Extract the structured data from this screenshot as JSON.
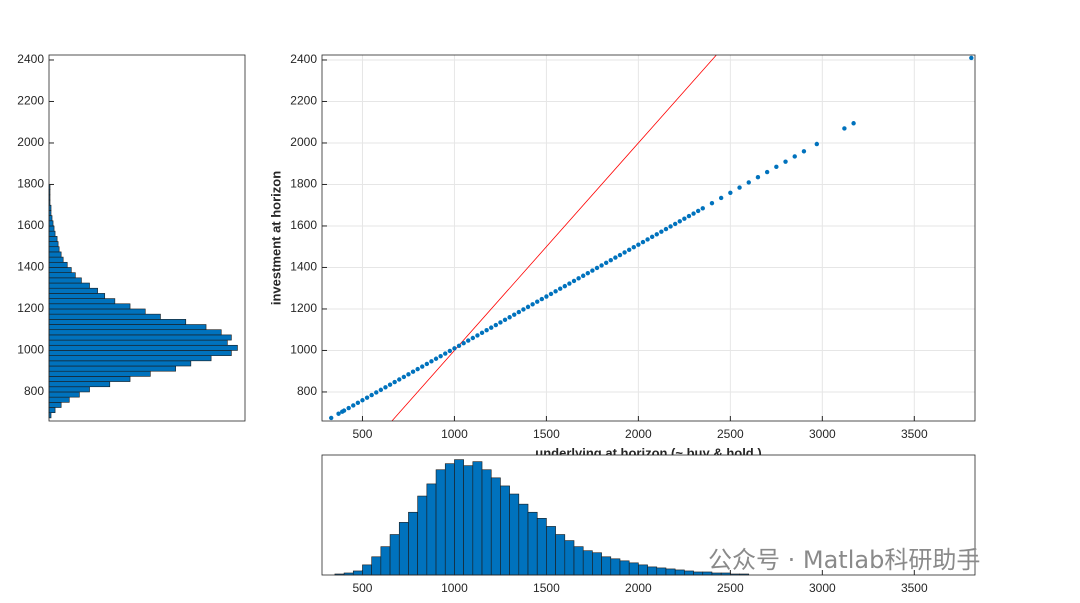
{
  "chart_data": [
    {
      "type": "scatter",
      "x_label": "underlying at horizon (~ buy & hold )",
      "y_label": "investment at horizon",
      "color": "#0072bd",
      "x": [
        330,
        370,
        390,
        400,
        425,
        450,
        475,
        500,
        525,
        550,
        575,
        600,
        625,
        650,
        675,
        700,
        725,
        750,
        775,
        800,
        825,
        850,
        875,
        900,
        925,
        950,
        975,
        1000,
        1025,
        1050,
        1075,
        1100,
        1125,
        1150,
        1175,
        1200,
        1225,
        1250,
        1275,
        1300,
        1325,
        1350,
        1375,
        1400,
        1425,
        1450,
        1475,
        1500,
        1525,
        1550,
        1575,
        1600,
        1625,
        1650,
        1675,
        1700,
        1725,
        1750,
        1775,
        1800,
        1825,
        1850,
        1875,
        1900,
        1925,
        1950,
        1975,
        2000,
        2025,
        2050,
        2075,
        2100,
        2125,
        2150,
        2175,
        2200,
        2225,
        2250,
        2275,
        2300,
        2325,
        2350,
        2400,
        2450,
        2500,
        2550,
        2600,
        2650,
        2700,
        2750,
        2800,
        2850,
        2900,
        2970,
        3120,
        3170,
        3810
      ],
      "values": [
        675,
        695,
        705,
        710,
        722.5,
        735,
        747.5,
        760,
        772.5,
        785,
        797.5,
        810,
        822.5,
        835,
        847.5,
        860,
        872.5,
        885,
        897.5,
        910,
        922.5,
        935,
        947.5,
        960,
        972.5,
        985,
        997.5,
        1010,
        1022.5,
        1035,
        1047.5,
        1060,
        1072.5,
        1085,
        1097.5,
        1110,
        1122.5,
        1135,
        1147.5,
        1160,
        1172.5,
        1185,
        1197.5,
        1210,
        1222.5,
        1235,
        1247.5,
        1260,
        1272.5,
        1285,
        1297.5,
        1310,
        1322.5,
        1335,
        1347.5,
        1360,
        1372.5,
        1385,
        1397.5,
        1410,
        1422.5,
        1435,
        1447.5,
        1460,
        1472.5,
        1485,
        1497.5,
        1510,
        1522.5,
        1535,
        1547.5,
        1560,
        1572.5,
        1585,
        1597.5,
        1610,
        1622.5,
        1635,
        1647.5,
        1660,
        1672.5,
        1685,
        1710,
        1735,
        1760,
        1785,
        1810,
        1835,
        1860,
        1885,
        1910,
        1935,
        1960,
        1995,
        2070,
        2095,
        2410
      ],
      "lines": [
        {
          "color": "#ff0000",
          "x": [
            660,
            2424
          ],
          "values": [
            660,
            2424
          ]
        }
      ],
      "xlim": [
        280,
        3830
      ],
      "ylim": [
        660,
        2424
      ],
      "xticks": [
        500,
        1000,
        1500,
        2000,
        2500,
        3000,
        3500
      ],
      "yticks": [
        800,
        1000,
        1200,
        1400,
        1600,
        1800,
        2000,
        2200,
        2400
      ],
      "grid": true
    },
    {
      "type": "histogram",
      "orientation": "horizontal",
      "color": "#0072bd",
      "bins": [
        675,
        700,
        725,
        750,
        775,
        800,
        825,
        850,
        875,
        900,
        925,
        950,
        975,
        1000,
        1025,
        1050,
        1075,
        1100,
        1125,
        1150,
        1175,
        1200,
        1225,
        1250,
        1275,
        1300,
        1325,
        1350,
        1375,
        1400,
        1425,
        1450,
        1475,
        1500,
        1525,
        1550,
        1575,
        1600,
        1625,
        1650,
        1675,
        1700,
        1725,
        1750,
        1775,
        1800
      ],
      "counts": [
        2,
        6,
        12,
        20,
        30,
        40,
        60,
        80,
        100,
        125,
        140,
        160,
        180,
        186,
        176,
        180,
        170,
        155,
        135,
        110,
        95,
        80,
        65,
        55,
        48,
        40,
        32,
        26,
        22,
        18,
        14,
        12,
        10,
        9,
        8,
        6,
        5,
        4,
        3,
        2,
        2,
        1,
        1,
        1,
        1
      ],
      "ylim": [
        660,
        2424
      ],
      "yticks": [
        800,
        1000,
        1200,
        1400,
        1600,
        1800,
        2000,
        2200,
        2400
      ]
    },
    {
      "type": "histogram",
      "orientation": "vertical",
      "color": "#0072bd",
      "bins": [
        350,
        400,
        450,
        500,
        550,
        600,
        650,
        700,
        750,
        800,
        850,
        900,
        950,
        1000,
        1050,
        1100,
        1150,
        1200,
        1250,
        1300,
        1350,
        1400,
        1450,
        1500,
        1550,
        1600,
        1650,
        1700,
        1750,
        1800,
        1850,
        1900,
        1950,
        2000,
        2050,
        2100,
        2150,
        2200,
        2250,
        2300,
        2350,
        2400,
        2450,
        2500,
        2550,
        2600
      ],
      "counts": [
        1,
        2,
        4,
        10,
        18,
        28,
        40,
        52,
        62,
        78,
        90,
        104,
        110,
        114,
        108,
        112,
        104,
        96,
        88,
        80,
        70,
        62,
        56,
        48,
        40,
        34,
        28,
        24,
        22,
        18,
        16,
        14,
        12,
        10,
        8,
        7,
        6,
        5,
        4,
        3,
        3,
        2,
        2,
        1,
        1
      ],
      "xlim": [
        280,
        3830
      ],
      "xticks": [
        500,
        1000,
        1500,
        2000,
        2500,
        3000,
        3500
      ]
    }
  ],
  "watermark": "公众号 · Matlab科研助手"
}
